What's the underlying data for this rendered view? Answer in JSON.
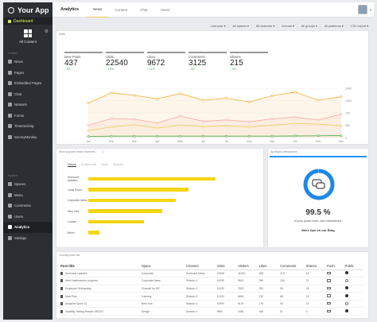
{
  "app": {
    "name": "Your App"
  },
  "sidebar": {
    "dashboard": "Dashboard",
    "selector": "All Content",
    "content_label": "Content",
    "items": [
      {
        "label": "News",
        "icon": "news-icon"
      },
      {
        "label": "Pages",
        "icon": "pages-icon"
      },
      {
        "label": "Embedded Pages",
        "icon": "embed-icon"
      },
      {
        "label": "Chat",
        "icon": "chat-icon"
      },
      {
        "label": "Network",
        "icon": "network-icon"
      },
      {
        "label": "Forms",
        "icon": "forms-icon"
      },
      {
        "label": "Timetracking",
        "icon": "clock-icon"
      },
      {
        "label": "SurveyMonkey",
        "icon": "survey-icon"
      }
    ],
    "system_label": "System",
    "system_items": [
      {
        "label": "Spaces",
        "icon": "spaces-icon"
      },
      {
        "label": "Menu",
        "icon": "menu-icon"
      },
      {
        "label": "Comments",
        "icon": "comments-icon"
      },
      {
        "label": "Users",
        "icon": "users-icon"
      },
      {
        "label": "Analytics",
        "icon": "analytics-icon",
        "active": true
      },
      {
        "label": "Settings",
        "icon": "settings-icon"
      }
    ]
  },
  "topbar": {
    "title": "Analytics",
    "tabs": [
      "News",
      "Content",
      "Chat",
      "Users"
    ]
  },
  "filters": [
    "Last year",
    "All spaces",
    "All channels",
    "Internal",
    "All groups",
    "All platforms",
    "CSV export"
  ],
  "stats_panel": {
    "title": "Stats",
    "stats": [
      {
        "label": "New Posts",
        "value": "437",
        "change": "↑ 6%"
      },
      {
        "label": "Visits",
        "value": "22540",
        "change": "↑ 12%"
      },
      {
        "label": "Likes",
        "value": "9672",
        "change": "↑ 11%"
      },
      {
        "label": "Comments",
        "value": "3125",
        "change": "↑ 3%"
      },
      {
        "label": "Shares",
        "value": "215",
        "change": "↑ 3%"
      }
    ]
  },
  "chart_data": [
    {
      "type": "line",
      "x": [
        "Jan",
        "Feb",
        "Mar",
        "Apr",
        "May",
        "Jun",
        "Jul",
        "Aug",
        "Sep",
        "Oct",
        "Nov",
        "Dec"
      ],
      "ylim": [
        0,
        1400
      ],
      "yticks": [
        "1400",
        "1050",
        "700",
        "350",
        "0"
      ],
      "series": [
        {
          "color": "#f2b84b",
          "values": [
            980,
            1270,
            1200,
            1100,
            1250,
            1060,
            1120,
            1010,
            1190,
            1290,
            1060,
            1160
          ]
        },
        {
          "color": "#f4b0ad",
          "values": [
            350,
            540,
            520,
            410,
            610,
            460,
            500,
            450,
            530,
            580,
            500,
            660
          ]
        },
        {
          "color": "#e9d26a",
          "values": [
            200,
            300,
            360,
            270,
            350,
            310,
            330,
            300,
            350,
            400,
            380,
            330
          ]
        },
        {
          "color": "#4caf50",
          "values": [
            30,
            40,
            40,
            40,
            40,
            40,
            40,
            40,
            40,
            45,
            50,
            55
          ]
        }
      ]
    },
    {
      "type": "bar",
      "orientation": "horizontal",
      "title": "Most popular news channels",
      "categories": [
        "Hurricane Updates",
        "Local Room",
        "Corporate News",
        "New York",
        "London",
        "Berlin"
      ],
      "values": [
        100,
        79,
        69,
        58,
        44,
        9
      ],
      "color": "#f5d50d"
    }
  ],
  "bars_panel": {
    "title": "Most popular news channels",
    "tabs": [
      "Views",
      "Comments",
      "Likes",
      "Shares"
    ]
  },
  "spotlight": {
    "title": "Spotlight Interactions",
    "percent": "99.5 %",
    "percent_value": 99.5,
    "subtitle": "of your posts have user interactions.",
    "link": "More tips on our Blog"
  },
  "table_panel": {
    "title": "Overall posts list",
    "columns": [
      "Post title",
      "Space",
      "Channel",
      "Visits",
      "Visitors",
      "Likes",
      "Comments",
      "Shares",
      "Push",
      "Public"
    ],
    "rows": [
      {
        "title": "Hurricane Updates",
        "space": "Corporate",
        "channel": "Hurricane News",
        "visits": "19208",
        "visitors": "11203",
        "likes": "498",
        "comments": "219",
        "shares": "43",
        "public": true
      },
      {
        "title": "New Dashboard in progress",
        "space": "Corporate News",
        "channel": "Division 1",
        "visits": "14230",
        "visitors": "9820",
        "likes": "290",
        "comments": "108",
        "shares": "22",
        "public": false
      },
      {
        "title": "Employee Onboarding",
        "space": "Channel for HR",
        "channel": "Division 1",
        "visits": "12430",
        "visitors": "7820",
        "likes": "251",
        "comments": "96",
        "shares": "18",
        "public": true
      },
      {
        "title": "Meal Plan",
        "space": "Catering",
        "channel": "Division 3",
        "visits": "11030",
        "visitors": "6890",
        "likes": "210",
        "comments": "88",
        "shares": "15",
        "public": true
      },
      {
        "title": "Analytics Sprint 12",
        "space": "New York",
        "channel": "Division 2",
        "visits": "10590",
        "visitors": "6120",
        "likes": "178",
        "comments": "63",
        "shares": "12",
        "public": false
      },
      {
        "title": "Usability Testing Results 180220",
        "space": "Design",
        "channel": "Division 1",
        "visits": "9860",
        "visitors": "5480",
        "likes": "165",
        "comments": "51",
        "shares": "9",
        "public": true
      }
    ]
  }
}
